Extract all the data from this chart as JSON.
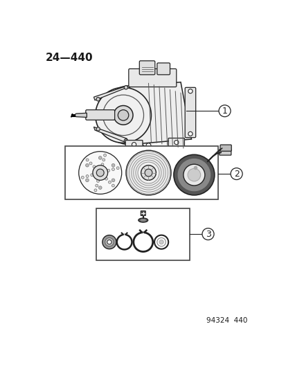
{
  "title": "24—440",
  "footer": "94324  440",
  "bg_color": "#ffffff",
  "text_color": "#1a1a1a",
  "label1": "1",
  "label2": "2",
  "label3": "3",
  "title_fontsize": 11,
  "footer_fontsize": 7.5
}
